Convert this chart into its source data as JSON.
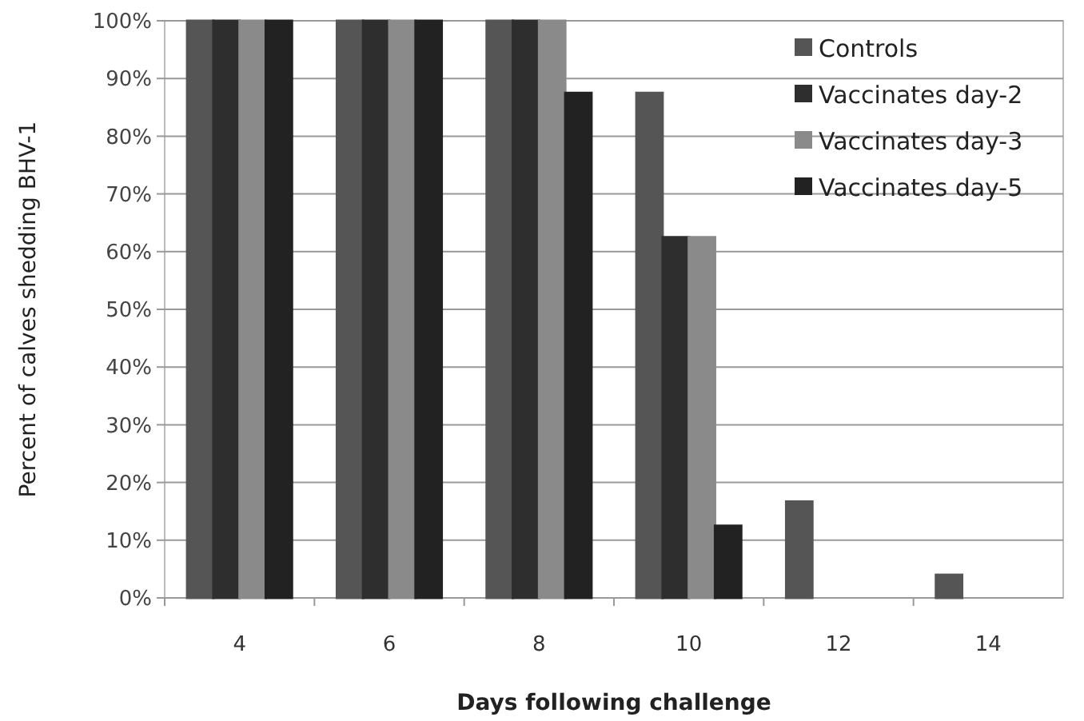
{
  "chart_data": {
    "type": "bar",
    "xlabel": "Days following challenge",
    "ylabel": "Percent of calves shedding BHV-1",
    "categories": [
      "4",
      "6",
      "8",
      "10",
      "12",
      "14"
    ],
    "series": [
      {
        "name": "Controls",
        "color": "#555555",
        "values": [
          100,
          100,
          100,
          87.5,
          16.7,
          4
        ]
      },
      {
        "name": "Vaccinates day-2",
        "color": "#2e2e2e",
        "values": [
          100,
          100,
          100,
          62.5,
          0,
          0
        ]
      },
      {
        "name": "Vaccinates day-3",
        "color": "#8a8a8a",
        "values": [
          100,
          100,
          100,
          62.5,
          0,
          0
        ]
      },
      {
        "name": "Vaccinates day-5",
        "color": "#222222",
        "values": [
          100,
          100,
          87.5,
          12.5,
          0,
          0
        ]
      }
    ],
    "ylim": [
      0,
      100
    ],
    "yticks": [
      {
        "value": 0,
        "label": "0%"
      },
      {
        "value": 10,
        "label": "10%"
      },
      {
        "value": 20,
        "label": "20%"
      },
      {
        "value": 30,
        "label": "30%"
      },
      {
        "value": 40,
        "label": "40%"
      },
      {
        "value": 50,
        "label": "50%"
      },
      {
        "value": 60,
        "label": "60%"
      },
      {
        "value": 70,
        "label": "70%"
      },
      {
        "value": 80,
        "label": "80%"
      },
      {
        "value": 90,
        "label": "90%"
      },
      {
        "value": 100,
        "label": "100%"
      }
    ],
    "grid": "y",
    "legend": "top right"
  }
}
